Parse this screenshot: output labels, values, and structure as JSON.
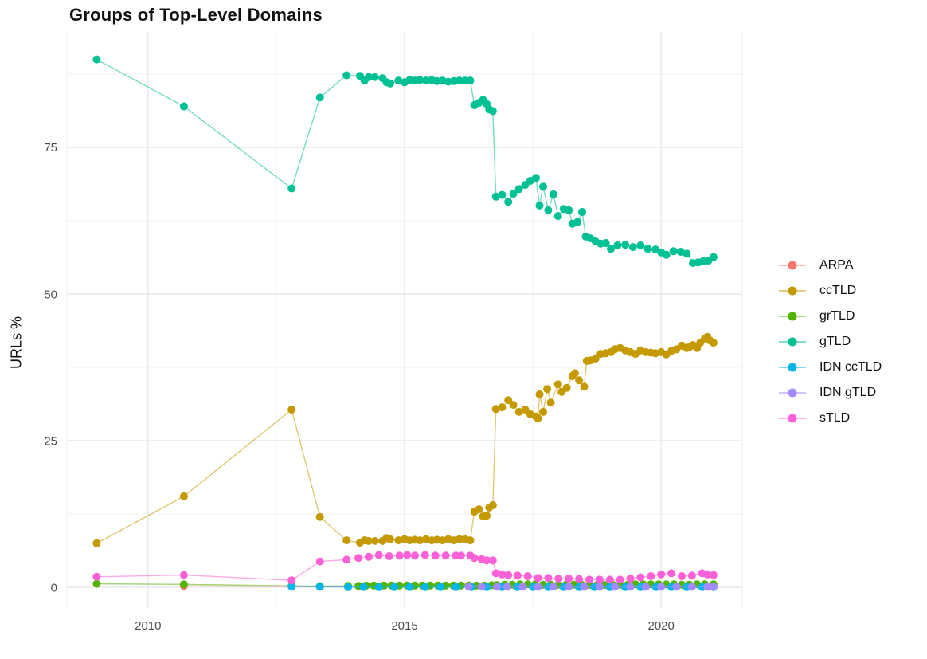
{
  "chart_data": {
    "type": "line",
    "title": "Groups of Top-Level Domains",
    "xlabel": "",
    "ylabel": "URLs %",
    "x_ticks": [
      2010,
      2015,
      2020
    ],
    "x_minor_ticks": [
      2012.5,
      2017.5
    ],
    "y_ticks": [
      0,
      25,
      50,
      75
    ],
    "y_minor_ticks": [
      12.5,
      37.5,
      62.5,
      87.5
    ],
    "xlim": [
      2008.42,
      2021.58
    ],
    "ylim": [
      -3.53,
      94.7
    ],
    "grid": true,
    "legend_position": "right",
    "series": [
      {
        "name": "ARPA",
        "color": "#F8766D",
        "points": [
          [
            2010.7,
            0.25
          ],
          [
            2012.8,
            0.12
          ],
          [
            2013.35,
            0.1
          ],
          [
            2013.9,
            0.08
          ]
        ]
      },
      {
        "name": "ccTLD",
        "color": "#C49A00",
        "points": [
          [
            2009,
            7.5
          ],
          [
            2010.7,
            15.5
          ],
          [
            2012.8,
            30.3
          ],
          [
            2013.35,
            12
          ],
          [
            2013.87,
            8
          ],
          [
            2014.13,
            7.6
          ],
          [
            2014.22,
            8
          ],
          [
            2014.3,
            7.9
          ],
          [
            2014.42,
            7.9
          ],
          [
            2014.57,
            7.9
          ],
          [
            2014.65,
            8.4
          ],
          [
            2014.72,
            8.2
          ],
          [
            2014.88,
            8
          ],
          [
            2015,
            8.2
          ],
          [
            2015.1,
            8
          ],
          [
            2015.2,
            8.1
          ],
          [
            2015.3,
            8
          ],
          [
            2015.42,
            8.2
          ],
          [
            2015.53,
            8
          ],
          [
            2015.63,
            8.1
          ],
          [
            2015.74,
            8
          ],
          [
            2015.85,
            8.2
          ],
          [
            2015.96,
            8
          ],
          [
            2016.07,
            8.2
          ],
          [
            2016.18,
            8.2
          ],
          [
            2016.28,
            8
          ],
          [
            2016.36,
            12.9
          ],
          [
            2016.45,
            13.3
          ],
          [
            2016.53,
            12.1
          ],
          [
            2016.6,
            12.2
          ],
          [
            2016.65,
            13.6
          ],
          [
            2016.72,
            14
          ],
          [
            2016.78,
            30.4
          ],
          [
            2016.9,
            30.7
          ],
          [
            2017.02,
            31.9
          ],
          [
            2017.12,
            31.1
          ],
          [
            2017.23,
            29.9
          ],
          [
            2017.35,
            30.3
          ],
          [
            2017.45,
            29.5
          ],
          [
            2017.56,
            29.1
          ],
          [
            2017.6,
            28.8
          ],
          [
            2017.63,
            32.9
          ],
          [
            2017.7,
            29.9
          ],
          [
            2017.78,
            33.8
          ],
          [
            2017.85,
            31.5
          ],
          [
            2017.99,
            34.6
          ],
          [
            2018.06,
            33.3
          ],
          [
            2018.16,
            34
          ],
          [
            2018.27,
            36
          ],
          [
            2018.32,
            36.5
          ],
          [
            2018.4,
            35.3
          ],
          [
            2018.5,
            34.2
          ],
          [
            2018.55,
            38.6
          ],
          [
            2018.62,
            38.7
          ],
          [
            2018.72,
            39
          ],
          [
            2018.82,
            39.8
          ],
          [
            2018.92,
            39.9
          ],
          [
            2019.02,
            40.1
          ],
          [
            2019.1,
            40.6
          ],
          [
            2019.2,
            40.8
          ],
          [
            2019.3,
            40.4
          ],
          [
            2019.4,
            40.1
          ],
          [
            2019.5,
            39.8
          ],
          [
            2019.6,
            40.4
          ],
          [
            2019.7,
            40.1
          ],
          [
            2019.8,
            40
          ],
          [
            2019.89,
            39.9
          ],
          [
            2020,
            40.1
          ],
          [
            2020.1,
            39.7
          ],
          [
            2020.2,
            40.3
          ],
          [
            2020.3,
            40.6
          ],
          [
            2020.4,
            41.2
          ],
          [
            2020.5,
            40.8
          ],
          [
            2020.56,
            41
          ],
          [
            2020.62,
            41.3
          ],
          [
            2020.7,
            40.8
          ],
          [
            2020.76,
            41.7
          ],
          [
            2020.85,
            42.4
          ],
          [
            2020.9,
            42.7
          ],
          [
            2020.95,
            42.1
          ],
          [
            2021.02,
            41.7
          ]
        ]
      },
      {
        "name": "grTLD",
        "color": "#53B400",
        "points": [
          [
            2009,
            0.6
          ],
          [
            2010.7,
            0.5
          ],
          [
            2012.8,
            0.25
          ],
          [
            2013.35,
            0.2
          ],
          [
            2013.9,
            0.25
          ],
          [
            2014.1,
            0.25
          ],
          [
            2014.25,
            0.3
          ],
          [
            2014.4,
            0.3
          ],
          [
            2014.6,
            0.3
          ],
          [
            2014.75,
            0.3
          ],
          [
            2014.9,
            0.3
          ],
          [
            2015.05,
            0.3
          ],
          [
            2015.2,
            0.3
          ],
          [
            2015.35,
            0.3
          ],
          [
            2015.5,
            0.3
          ],
          [
            2015.65,
            0.3
          ],
          [
            2015.8,
            0.3
          ],
          [
            2015.95,
            0.3
          ],
          [
            2016.1,
            0.3
          ],
          [
            2016.25,
            0.3
          ],
          [
            2016.4,
            0.3
          ],
          [
            2016.55,
            0.3
          ],
          [
            2016.7,
            0.35
          ],
          [
            2016.8,
            0.4
          ],
          [
            2016.95,
            0.45
          ],
          [
            2017.1,
            0.45
          ],
          [
            2017.25,
            0.5
          ],
          [
            2017.4,
            0.5
          ],
          [
            2017.55,
            0.5
          ],
          [
            2017.7,
            0.45
          ],
          [
            2017.85,
            0.45
          ],
          [
            2018,
            0.45
          ],
          [
            2018.15,
            0.45
          ],
          [
            2018.3,
            0.45
          ],
          [
            2018.45,
            0.45
          ],
          [
            2018.6,
            0.4
          ],
          [
            2018.75,
            0.4
          ],
          [
            2018.9,
            0.4
          ],
          [
            2019.05,
            0.45
          ],
          [
            2019.2,
            0.45
          ],
          [
            2019.35,
            0.45
          ],
          [
            2019.5,
            0.5
          ],
          [
            2019.65,
            0.5
          ],
          [
            2019.8,
            0.5
          ],
          [
            2019.95,
            0.5
          ],
          [
            2020.1,
            0.5
          ],
          [
            2020.25,
            0.5
          ],
          [
            2020.4,
            0.45
          ],
          [
            2020.55,
            0.45
          ],
          [
            2020.7,
            0.5
          ],
          [
            2020.85,
            0.5
          ],
          [
            2021.02,
            0.5
          ]
        ]
      },
      {
        "name": "gTLD",
        "color": "#00C094",
        "points": [
          [
            2009,
            90
          ],
          [
            2010.7,
            82
          ],
          [
            2012.8,
            68
          ],
          [
            2013.35,
            83.5
          ],
          [
            2013.87,
            87.3
          ],
          [
            2014.13,
            87.2
          ],
          [
            2014.22,
            86.4
          ],
          [
            2014.3,
            87
          ],
          [
            2014.42,
            87
          ],
          [
            2014.57,
            86.8
          ],
          [
            2014.65,
            86.1
          ],
          [
            2014.72,
            85.9
          ],
          [
            2014.88,
            86.4
          ],
          [
            2015,
            86.1
          ],
          [
            2015.1,
            86.5
          ],
          [
            2015.2,
            86.4
          ],
          [
            2015.3,
            86.5
          ],
          [
            2015.42,
            86.4
          ],
          [
            2015.53,
            86.5
          ],
          [
            2015.63,
            86.3
          ],
          [
            2015.74,
            86.4
          ],
          [
            2015.85,
            86.2
          ],
          [
            2015.96,
            86.3
          ],
          [
            2016.07,
            86.4
          ],
          [
            2016.18,
            86.4
          ],
          [
            2016.28,
            86.4
          ],
          [
            2016.36,
            82.2
          ],
          [
            2016.45,
            82.6
          ],
          [
            2016.53,
            83.1
          ],
          [
            2016.6,
            82.4
          ],
          [
            2016.65,
            81.5
          ],
          [
            2016.72,
            81.2
          ],
          [
            2016.78,
            66.6
          ],
          [
            2016.9,
            66.9
          ],
          [
            2017.02,
            65.7
          ],
          [
            2017.12,
            67.1
          ],
          [
            2017.23,
            67.9
          ],
          [
            2017.35,
            68.6
          ],
          [
            2017.45,
            69.3
          ],
          [
            2017.56,
            69.8
          ],
          [
            2017.63,
            65.1
          ],
          [
            2017.7,
            68.3
          ],
          [
            2017.8,
            64.3
          ],
          [
            2017.9,
            67
          ],
          [
            2017.99,
            63.3
          ],
          [
            2018.1,
            64.5
          ],
          [
            2018.2,
            64.3
          ],
          [
            2018.27,
            62
          ],
          [
            2018.37,
            62.3
          ],
          [
            2018.46,
            64
          ],
          [
            2018.53,
            59.8
          ],
          [
            2018.62,
            59.5
          ],
          [
            2018.72,
            59
          ],
          [
            2018.82,
            58.6
          ],
          [
            2018.92,
            58.7
          ],
          [
            2019.02,
            57.7
          ],
          [
            2019.15,
            58.3
          ],
          [
            2019.3,
            58.4
          ],
          [
            2019.45,
            58
          ],
          [
            2019.6,
            58.3
          ],
          [
            2019.74,
            57.7
          ],
          [
            2019.89,
            57.6
          ],
          [
            2020,
            57.1
          ],
          [
            2020.1,
            56.7
          ],
          [
            2020.24,
            57.3
          ],
          [
            2020.38,
            57.2
          ],
          [
            2020.5,
            56.9
          ],
          [
            2020.62,
            55.3
          ],
          [
            2020.72,
            55.4
          ],
          [
            2020.82,
            55.6
          ],
          [
            2020.92,
            55.7
          ],
          [
            2021.02,
            56.3
          ]
        ]
      },
      {
        "name": "IDN ccTLD",
        "color": "#00B6EB",
        "points": [
          [
            2012.8,
            0.15
          ],
          [
            2013.35,
            0.1
          ],
          [
            2013.9,
            0.05
          ],
          [
            2014.2,
            0.05
          ],
          [
            2014.5,
            0.05
          ],
          [
            2014.8,
            0.05
          ],
          [
            2015.1,
            0.05
          ],
          [
            2015.4,
            0.05
          ],
          [
            2015.7,
            0.05
          ],
          [
            2016,
            0.05
          ],
          [
            2016.3,
            0.05
          ],
          [
            2016.6,
            0.05
          ],
          [
            2016.9,
            0.05
          ],
          [
            2017.2,
            0.05
          ],
          [
            2017.5,
            0.05
          ],
          [
            2017.8,
            0.05
          ],
          [
            2018.1,
            0.05
          ],
          [
            2018.4,
            0.05
          ],
          [
            2018.7,
            0.05
          ],
          [
            2019,
            0.05
          ],
          [
            2019.3,
            0.05
          ],
          [
            2019.6,
            0.05
          ],
          [
            2019.9,
            0.05
          ],
          [
            2020.2,
            0.05
          ],
          [
            2020.5,
            0.05
          ],
          [
            2020.8,
            0.05
          ],
          [
            2021.02,
            0.05
          ]
        ]
      },
      {
        "name": "IDN gTLD",
        "color": "#A58AFF",
        "points": [
          [
            2016.25,
            0.1
          ],
          [
            2016.5,
            0.08
          ],
          [
            2016.8,
            0.08
          ],
          [
            2017,
            0.08
          ],
          [
            2017.3,
            0.08
          ],
          [
            2017.6,
            0.08
          ],
          [
            2017.9,
            0.08
          ],
          [
            2018.2,
            0.08
          ],
          [
            2018.5,
            0.08
          ],
          [
            2018.8,
            0.08
          ],
          [
            2019.1,
            0.08
          ],
          [
            2019.4,
            0.08
          ],
          [
            2019.7,
            0.08
          ],
          [
            2020,
            0.08
          ],
          [
            2020.3,
            0.08
          ],
          [
            2020.6,
            0.08
          ],
          [
            2020.9,
            0.08
          ],
          [
            2021.02,
            0.08
          ]
        ]
      },
      {
        "name": "sTLD",
        "color": "#FB61D7",
        "points": [
          [
            2009,
            1.8
          ],
          [
            2010.7,
            2.1
          ],
          [
            2012.8,
            1.2
          ],
          [
            2013.35,
            4.4
          ],
          [
            2013.87,
            4.7
          ],
          [
            2014.1,
            5
          ],
          [
            2014.3,
            5.2
          ],
          [
            2014.5,
            5.5
          ],
          [
            2014.7,
            5.3
          ],
          [
            2014.9,
            5.4
          ],
          [
            2015.05,
            5.5
          ],
          [
            2015.2,
            5.4
          ],
          [
            2015.4,
            5.5
          ],
          [
            2015.6,
            5.4
          ],
          [
            2015.8,
            5.4
          ],
          [
            2016,
            5.4
          ],
          [
            2016.1,
            5.4
          ],
          [
            2016.28,
            5.4
          ],
          [
            2016.36,
            5
          ],
          [
            2016.5,
            4.8
          ],
          [
            2016.6,
            4.6
          ],
          [
            2016.72,
            4.6
          ],
          [
            2016.78,
            2.4
          ],
          [
            2016.9,
            2.2
          ],
          [
            2017.02,
            2.1
          ],
          [
            2017.2,
            2
          ],
          [
            2017.4,
            1.9
          ],
          [
            2017.6,
            1.6
          ],
          [
            2017.8,
            1.6
          ],
          [
            2018,
            1.5
          ],
          [
            2018.2,
            1.5
          ],
          [
            2018.4,
            1.4
          ],
          [
            2018.6,
            1.3
          ],
          [
            2018.8,
            1.3
          ],
          [
            2019,
            1.3
          ],
          [
            2019.2,
            1.3
          ],
          [
            2019.4,
            1.5
          ],
          [
            2019.6,
            1.7
          ],
          [
            2019.8,
            1.9
          ],
          [
            2020,
            2.2
          ],
          [
            2020.2,
            2.4
          ],
          [
            2020.4,
            1.9
          ],
          [
            2020.6,
            2
          ],
          [
            2020.8,
            2.4
          ],
          [
            2020.9,
            2.2
          ],
          [
            2021.02,
            2.1
          ]
        ]
      }
    ]
  },
  "theme": {
    "background": "#FFFFFF",
    "grid_major": "#E3E3E3",
    "grid_minor": "#F1F1F1",
    "axis_text": "#4D4D4D",
    "title_text": "#111111"
  }
}
